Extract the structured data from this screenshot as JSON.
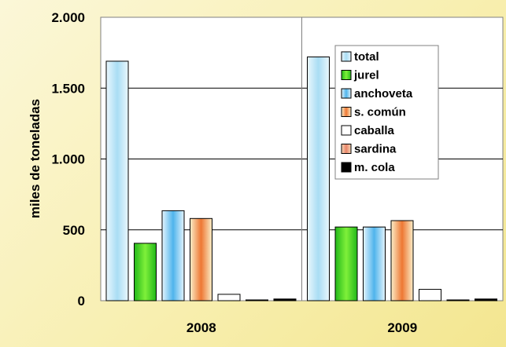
{
  "chart_data": {
    "type": "bar",
    "title": "",
    "xlabel": "",
    "ylabel": "miles de toneladas",
    "categories": [
      "2008",
      "2009"
    ],
    "ylim": [
      0,
      2000
    ],
    "yticks": [
      0,
      500,
      1000,
      1500,
      2000
    ],
    "ytick_labels": [
      "0",
      "500",
      "1.000",
      "1.500",
      "2.000"
    ],
    "grid": true,
    "legend": "top-right",
    "series": [
      {
        "name": "total",
        "values": [
          1690,
          1720
        ],
        "color": "#a9ddf4"
      },
      {
        "name": "jurel",
        "values": [
          405,
          520
        ],
        "color": "#33cc22"
      },
      {
        "name": "anchoveta",
        "values": [
          635,
          520
        ],
        "color": "#4fb4ec"
      },
      {
        "name": "s. común",
        "values": [
          580,
          565
        ],
        "color": "#ee7733"
      },
      {
        "name": "caballa",
        "values": [
          45,
          80
        ],
        "color": "#ffffff"
      },
      {
        "name": "sardina",
        "values": [
          2,
          2
        ],
        "color": "#e8856a"
      },
      {
        "name": "m. cola",
        "values": [
          12,
          12
        ],
        "color": "#000000"
      }
    ]
  }
}
